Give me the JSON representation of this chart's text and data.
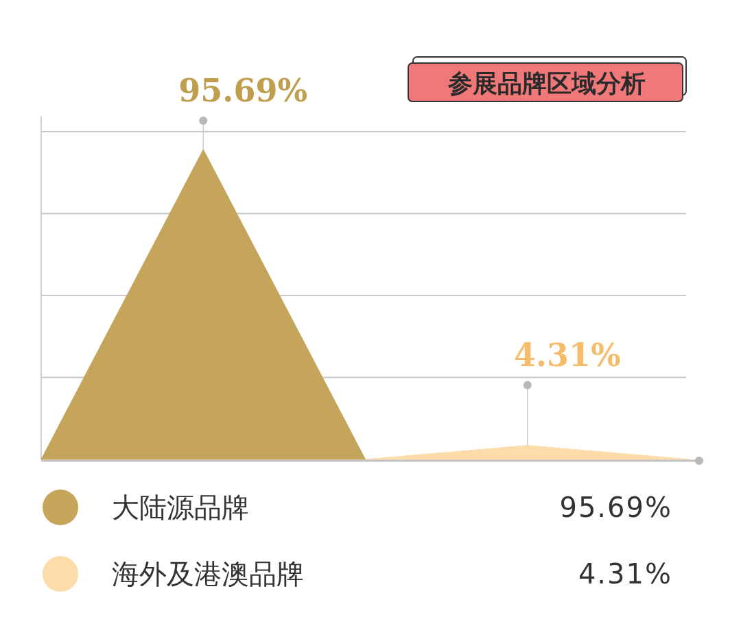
{
  "chart_data": {
    "type": "area",
    "title": "参展品牌区域分析",
    "grid": "y",
    "legend": "bottom",
    "categories": [
      null,
      null,
      null,
      null,
      null
    ],
    "series": [
      {
        "name": "大陆源品牌",
        "color": "#c4a55b",
        "values": [
          0,
          95.69,
          0,
          null,
          null
        ],
        "value_labels": [
          null,
          "95.69%",
          null,
          null,
          null
        ]
      },
      {
        "name": "海外及港澳品牌",
        "color": "#fddcaa",
        "values": [
          null,
          null,
          0,
          4.31,
          0
        ],
        "value_labels": [
          null,
          null,
          null,
          "4.31%",
          null
        ]
      }
    ],
    "annotations": [
      "95.69%",
      "4.31%"
    ]
  }
}
